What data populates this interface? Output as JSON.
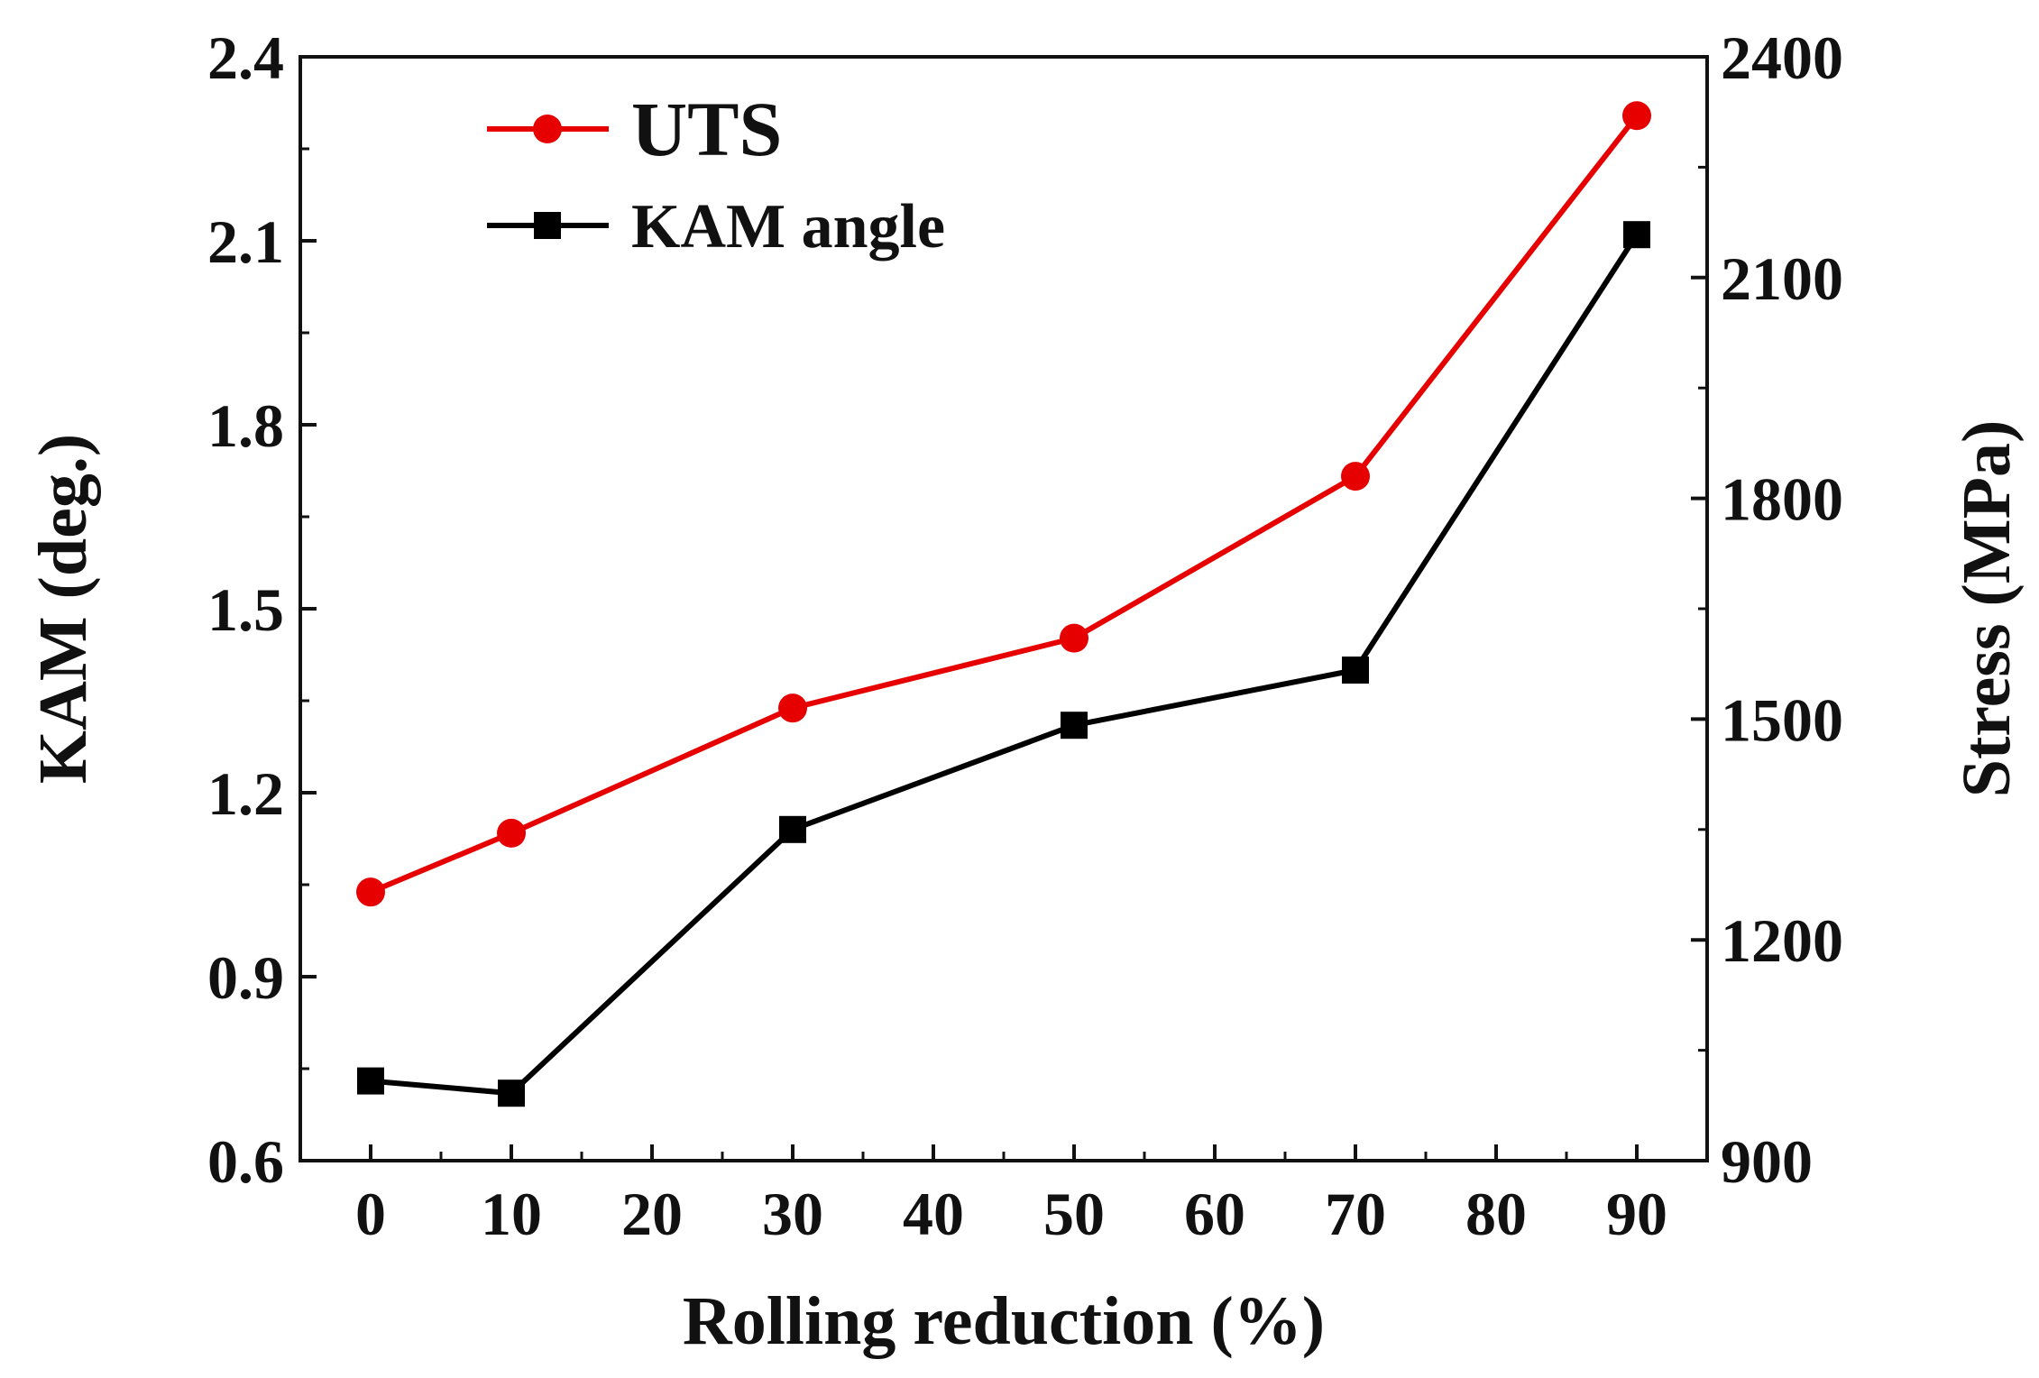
{
  "chart_data": {
    "type": "line",
    "xlabel": "Rolling reduction (%)",
    "ylabel_left": "KAM (deg.)",
    "ylabel_right": "Stress (MPa)",
    "xlim": [
      -5,
      95
    ],
    "ylim_left": [
      0.6,
      2.4
    ],
    "ylim_right": [
      900,
      2400
    ],
    "x_ticks": [
      "0",
      "10",
      "20",
      "30",
      "40",
      "50",
      "60",
      "70",
      "80",
      "90"
    ],
    "y_left_ticks": [
      "0.6",
      "0.9",
      "1.2",
      "1.5",
      "1.8",
      "2.1",
      "2.4"
    ],
    "y_right_ticks": [
      "900",
      "1200",
      "1500",
      "1800",
      "2100",
      "2400"
    ],
    "legend_position": "top-left",
    "grid": false,
    "series": [
      {
        "name": "UTS",
        "axis": "right",
        "color": "#e60000",
        "marker": "circle",
        "x": [
          0,
          10,
          30,
          50,
          70,
          90
        ],
        "values": [
          1265,
          1345,
          1515,
          1610,
          1830,
          2320
        ]
      },
      {
        "name": "KAM angle",
        "axis": "left",
        "color": "#000000",
        "marker": "square",
        "x": [
          0,
          10,
          30,
          50,
          70,
          90
        ],
        "values": [
          0.73,
          0.71,
          1.14,
          1.31,
          1.4,
          2.11
        ]
      }
    ]
  }
}
